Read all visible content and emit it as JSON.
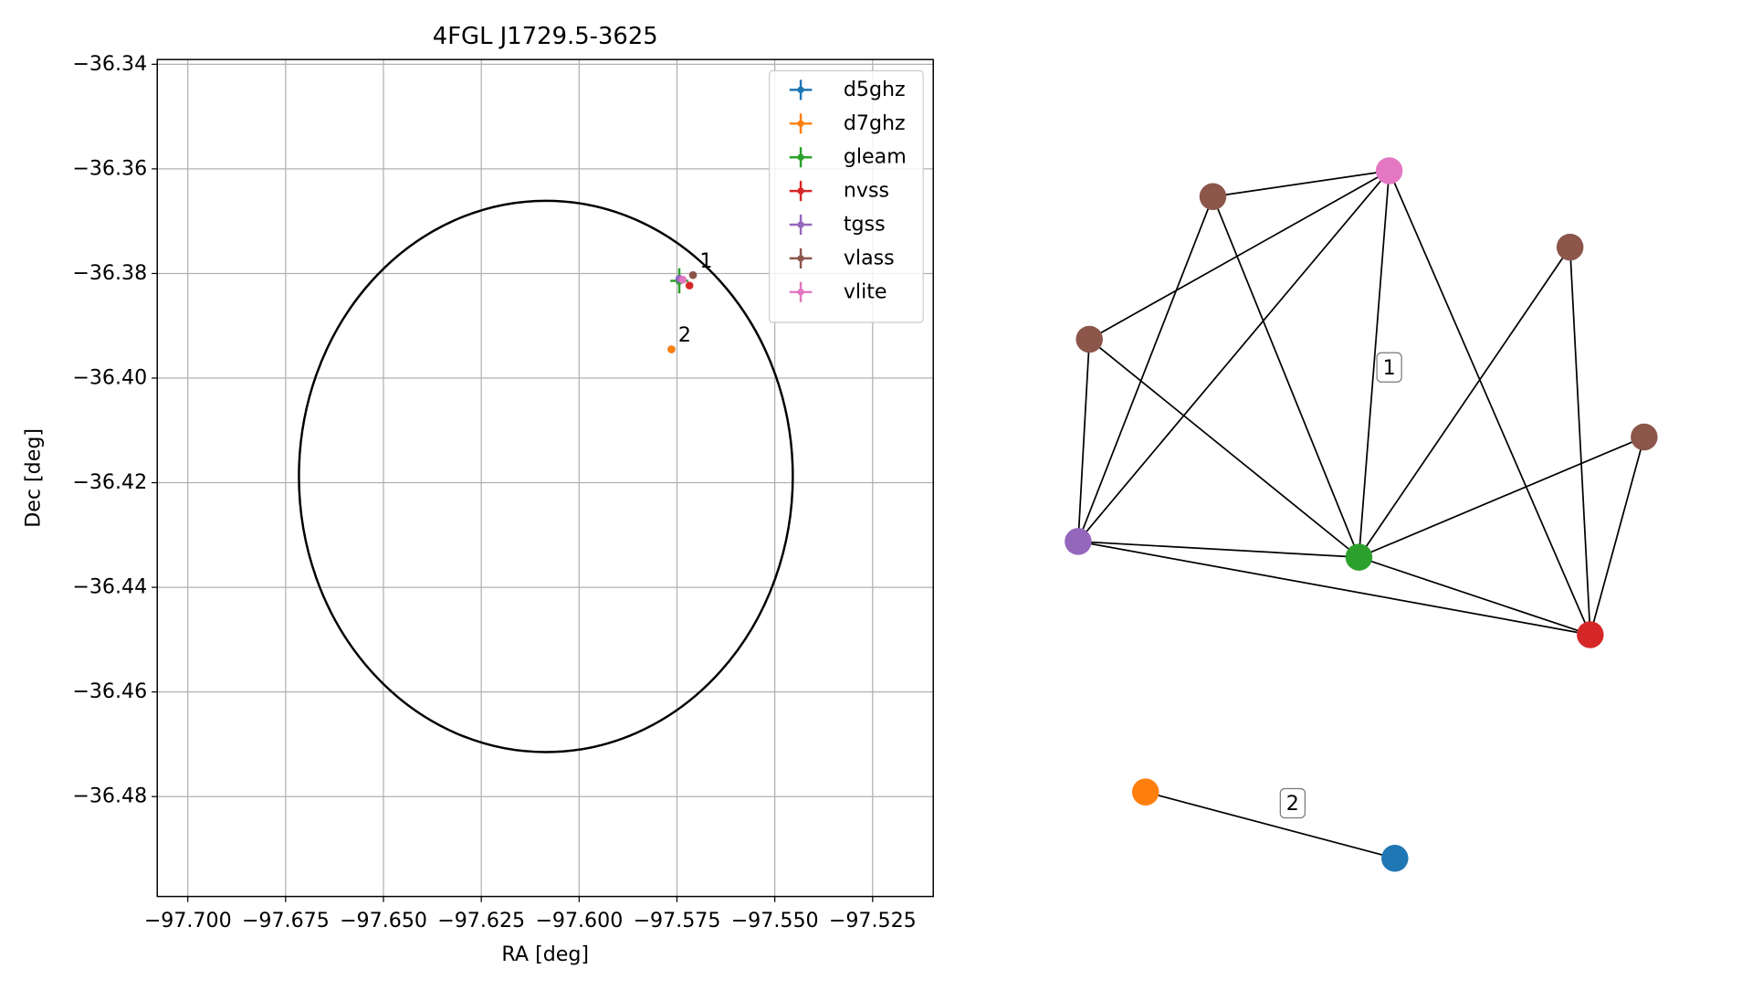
{
  "chart_data": [
    {
      "type": "scatter",
      "title": "4FGL J1729.5-3625",
      "x_label": "RA [deg]",
      "y_label": "Dec [deg]",
      "xlim": [
        -97.7078,
        -97.5095
      ],
      "ylim": [
        -36.4991,
        -36.3391
      ],
      "xticks": [
        {
          "value": -97.7,
          "label": "−97.700"
        },
        {
          "value": -97.675,
          "label": "−97.675"
        },
        {
          "value": -97.65,
          "label": "−97.650"
        },
        {
          "value": -97.625,
          "label": "−97.625"
        },
        {
          "value": -97.6,
          "label": "−97.600"
        },
        {
          "value": -97.575,
          "label": "−97.575"
        },
        {
          "value": -97.55,
          "label": "−97.550"
        },
        {
          "value": -97.525,
          "label": "−97.525"
        }
      ],
      "yticks": [
        {
          "value": -36.34,
          "label": "−36.34"
        },
        {
          "value": -36.36,
          "label": "−36.36"
        },
        {
          "value": -36.38,
          "label": "−36.38"
        },
        {
          "value": -36.4,
          "label": "−36.40"
        },
        {
          "value": -36.42,
          "label": "−36.42"
        },
        {
          "value": -36.44,
          "label": "−36.44"
        },
        {
          "value": -36.46,
          "label": "−36.46"
        },
        {
          "value": -36.48,
          "label": "−36.48"
        }
      ],
      "grid": true,
      "legend": "upper right",
      "ellipse": {
        "center": [
          -97.6085,
          -36.4188
        ],
        "width": 0.1262,
        "height": 0.1054,
        "color": "#000000"
      },
      "series": [
        {
          "name": "d5ghz",
          "color": "#1f77b4",
          "x": [
            -97.5764
          ],
          "y": [
            -36.3945
          ]
        },
        {
          "name": "d7ghz",
          "color": "#ff7f0e",
          "x": [
            -97.5764
          ],
          "y": [
            -36.3945
          ]
        },
        {
          "name": "gleam",
          "color": "#2ca02c",
          "x": [
            -97.5744
          ],
          "y": [
            -36.3814
          ],
          "xerr": [
            0.0023
          ],
          "yerr": [
            0.0024
          ]
        },
        {
          "name": "nvss",
          "color": "#d62728",
          "x": [
            -97.5718
          ],
          "y": [
            -36.3823
          ]
        },
        {
          "name": "tgss",
          "color": "#9467bd",
          "x": [
            -97.5744
          ],
          "y": [
            -36.381
          ]
        },
        {
          "name": "vlass",
          "color": "#8c564b",
          "x": [
            -97.5709
          ],
          "y": [
            -36.3803
          ]
        },
        {
          "name": "vlite",
          "color": "#e377c2",
          "x": [
            -97.5735
          ],
          "y": [
            -36.3812
          ]
        }
      ],
      "annotations": [
        "1",
        "2"
      ]
    },
    {
      "type": "network",
      "nodes": [
        "#e377c2",
        "#8c564b",
        "#8c564b",
        "#8c564b",
        "#8c564b",
        "#9467bd",
        "#2ca02c",
        "#d62728",
        "#ff7f0e",
        "#1f77b4"
      ],
      "edges": [
        [
          1,
          0
        ],
        [
          3,
          0
        ],
        [
          5,
          0
        ],
        [
          6,
          0
        ],
        [
          7,
          0
        ],
        [
          1,
          5
        ],
        [
          1,
          6
        ],
        [
          3,
          5
        ],
        [
          3,
          6
        ],
        [
          2,
          6
        ],
        [
          2,
          7
        ],
        [
          4,
          6
        ],
        [
          4,
          7
        ],
        [
          5,
          6
        ],
        [
          5,
          7
        ],
        [
          6,
          7
        ],
        [
          8,
          9
        ]
      ],
      "edge_color": "#000000",
      "cluster_labels": [
        "1",
        "2"
      ]
    }
  ]
}
